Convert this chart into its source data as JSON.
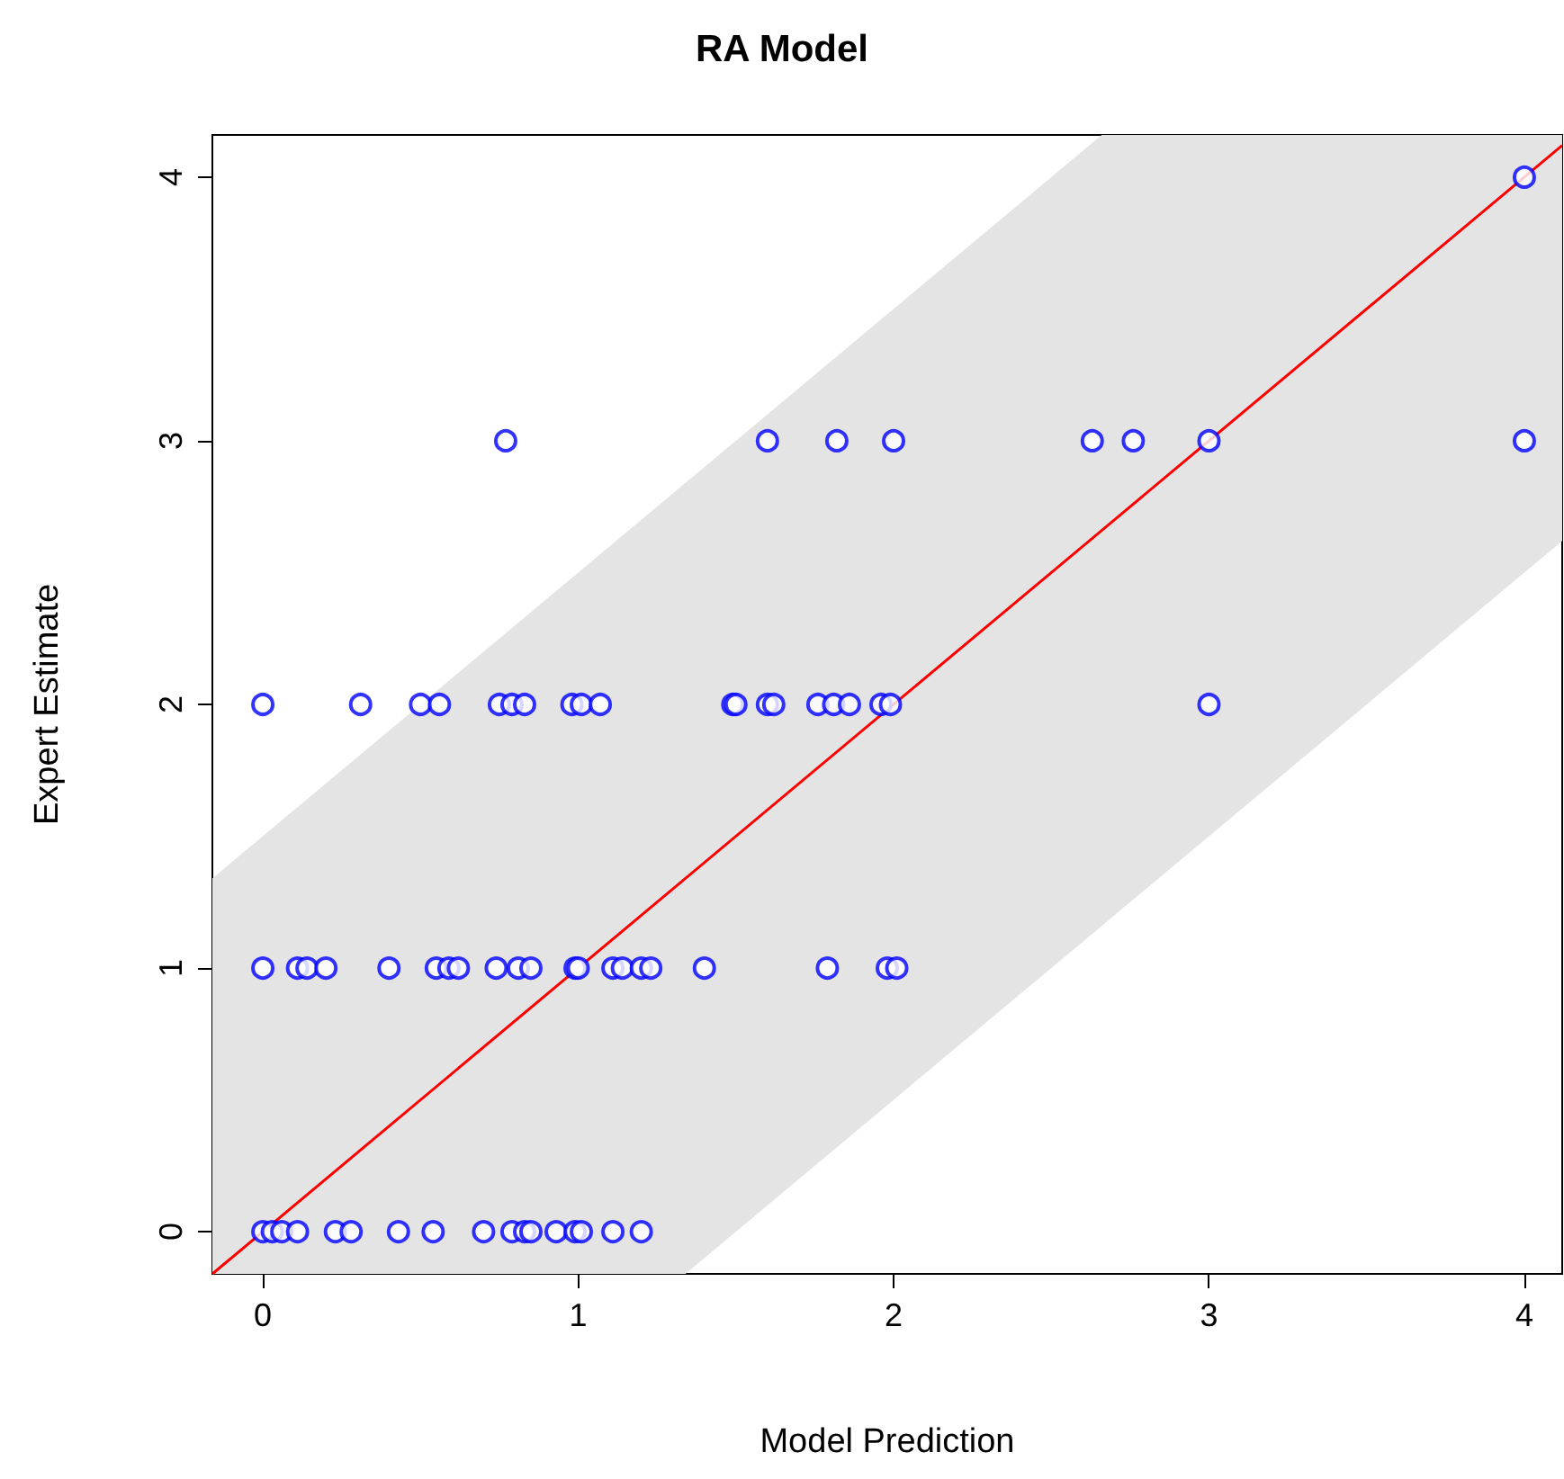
{
  "chart_data": {
    "type": "scatter",
    "title": "RA Model",
    "xlabel": "Model Prediction",
    "ylabel": "Expert Estimate",
    "xlim": [
      -0.16,
      4.12
    ],
    "ylim": [
      -0.16,
      4.16
    ],
    "xticks": [
      0,
      1,
      2,
      3,
      4
    ],
    "yticks": [
      0,
      1,
      2,
      3,
      4
    ],
    "grid": false,
    "marker": "circle",
    "series": [
      {
        "color": "#0000ff",
        "x": [
          0,
          0.03,
          0.06,
          0.11,
          0.23,
          0.28,
          0.43,
          0.54,
          0.7,
          0.79,
          0.83,
          0.85,
          0.93,
          0.99,
          1.01,
          1.11,
          1.2,
          0,
          0.11,
          0.14,
          0.2,
          0.4,
          0.55,
          0.59,
          0.62,
          0.74,
          0.81,
          0.85,
          0.99,
          1.0,
          1.11,
          1.14,
          1.2,
          1.23,
          1.4,
          1.79,
          1.98,
          2.01,
          0,
          0.31,
          0.5,
          0.56,
          0.75,
          0.79,
          0.83,
          0.98,
          1.01,
          1.07,
          1.49,
          1.5,
          1.6,
          1.62,
          1.76,
          1.81,
          1.86,
          1.96,
          1.99,
          3.0,
          0.77,
          1.6,
          1.82,
          2.0,
          2.63,
          2.76,
          3.0,
          4.0,
          4.0
        ],
        "values": [
          0,
          0,
          0,
          0,
          0,
          0,
          0,
          0,
          0,
          0,
          0,
          0,
          0,
          0,
          0,
          0,
          0,
          1,
          1,
          1,
          1,
          1,
          1,
          1,
          1,
          1,
          1,
          1,
          1,
          1,
          1,
          1,
          1,
          1,
          1,
          1,
          1,
          1,
          2,
          2,
          2,
          2,
          2,
          2,
          2,
          2,
          2,
          2,
          2,
          2,
          2,
          2,
          2,
          2,
          2,
          2,
          2,
          2,
          3,
          3,
          3,
          3,
          3,
          3,
          3,
          3,
          4
        ]
      },
      {
        "type": "line",
        "color": "#ff0000",
        "marker": "none",
        "line_style": "solid",
        "x": [
          -0.16,
          1.34,
          2.66,
          4.12
        ],
        "values": [
          -0.16,
          1.34,
          2.66,
          4.12
        ],
        "lower": [
          -0.16,
          -0.16,
          1.16,
          2.62
        ],
        "upper": [
          1.34,
          2.84,
          4.16,
          4.16
        ]
      }
    ]
  }
}
